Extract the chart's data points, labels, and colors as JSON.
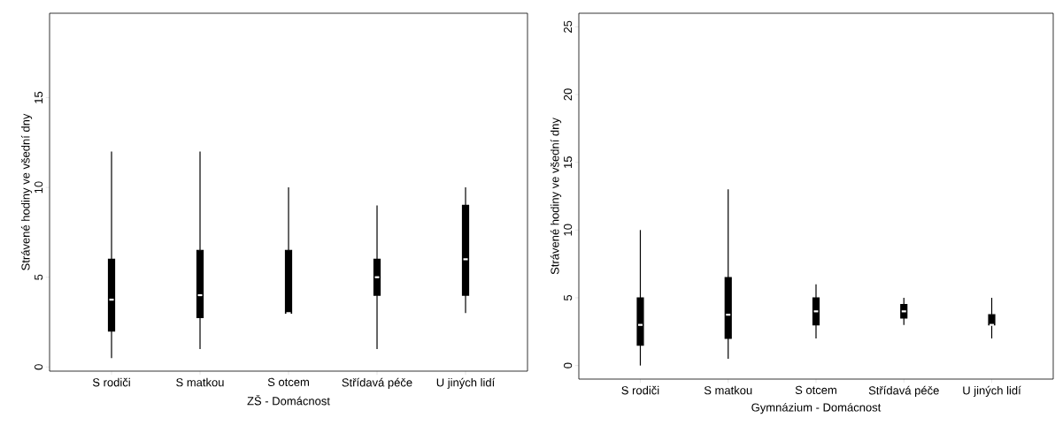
{
  "chart_data": [
    {
      "type": "box",
      "xlabel": "ZŠ - Domácnost",
      "ylabel": "Strávené hodiny ve všední dny",
      "categories": [
        "S rodiči",
        "S matkou",
        "S otcem",
        "Střídavá péče",
        "U jiných lidí"
      ],
      "ylim": [
        -0.23,
        19.7
      ],
      "yticks": [
        0,
        5,
        10,
        15
      ],
      "color": "#000000",
      "boxes": [
        {
          "low": 0.5,
          "q1": 2,
          "median": 3.75,
          "q3": 6,
          "high": 12
        },
        {
          "low": 1,
          "q1": 2.75,
          "median": 4,
          "q3": 6.5,
          "high": 12
        },
        {
          "low": 3,
          "q1": 3,
          "median": 3,
          "q3": 6.5,
          "high": 10
        },
        {
          "low": 1,
          "q1": 4,
          "median": 5,
          "q3": 6,
          "high": 9
        },
        {
          "low": 3,
          "q1": 4,
          "median": 6,
          "q3": 9,
          "high": 10
        }
      ]
    },
    {
      "type": "box",
      "xlabel": "Gymnázium - Domácnost",
      "ylabel": "Strávené hodiny ve všední dny",
      "categories": [
        "S rodiči",
        "S matkou",
        "S otcem",
        "Střídavá péče",
        "U jiných lidí"
      ],
      "ylim": [
        -1,
        26
      ],
      "yticks": [
        0,
        5,
        10,
        15,
        20,
        25
      ],
      "color": "#000000",
      "boxes": [
        {
          "low": 0,
          "q1": 1.5,
          "median": 3,
          "q3": 5,
          "high": 10
        },
        {
          "low": 0.5,
          "q1": 2,
          "median": 3.75,
          "q3": 6.5,
          "high": 13
        },
        {
          "low": 2,
          "q1": 3,
          "median": 4,
          "q3": 5,
          "high": 6
        },
        {
          "low": 3,
          "q1": 3.5,
          "median": 4,
          "q3": 4.5,
          "high": 5
        },
        {
          "low": 2,
          "q1": 3,
          "median": 3,
          "q3": 3.75,
          "high": 5
        }
      ]
    }
  ]
}
